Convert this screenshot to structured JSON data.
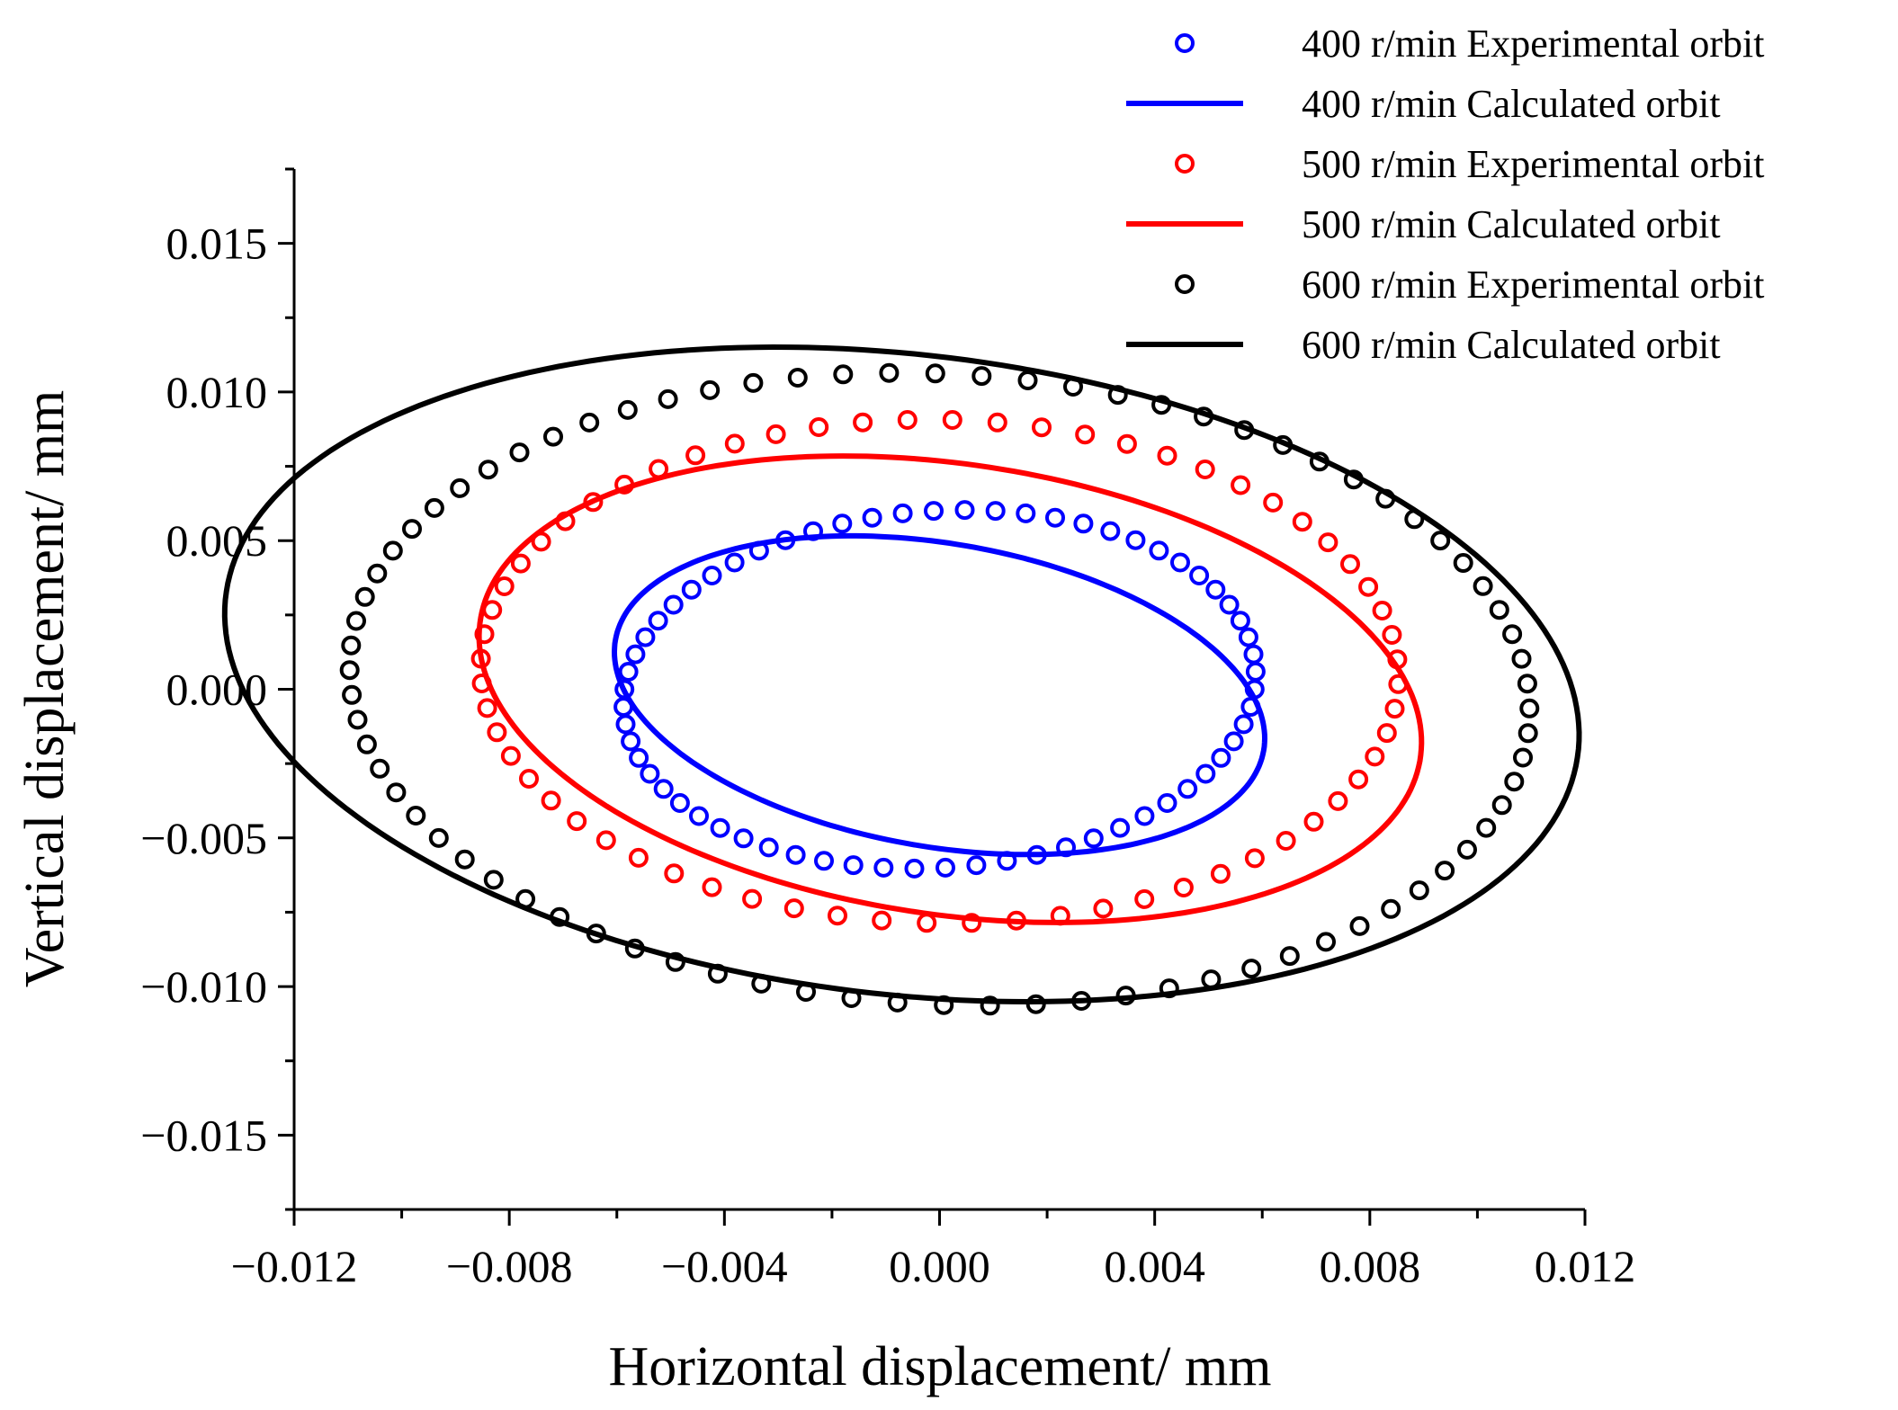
{
  "chart_data": {
    "type": "scatter",
    "title": "",
    "xlabel": "Horizontal displacement/ mm",
    "ylabel": "Vertical displacement/ mm",
    "xlim": [
      -0.012,
      0.012
    ],
    "ylim": [
      -0.0175,
      0.0175
    ],
    "x_ticks": [
      -0.012,
      -0.008,
      -0.004,
      0.0,
      0.004,
      0.008,
      0.012
    ],
    "x_tick_labels": [
      "−0.012",
      "−0.008",
      "−0.004",
      "0.000",
      "0.004",
      "0.008",
      "0.012"
    ],
    "y_ticks": [
      -0.015,
      -0.01,
      -0.005,
      0.0,
      0.005,
      0.01,
      0.015
    ],
    "y_tick_labels": [
      "−0.015",
      "−0.010",
      "−0.005",
      "0.000",
      "0.005",
      "0.010",
      "0.015"
    ],
    "grid": false,
    "legend_position": "top-right",
    "series": [
      {
        "name": "400 r/min Experimental orbit",
        "style": "marker",
        "color": "#0000ff",
        "ellipse": {
          "cx": 0.0,
          "cy": 0.0,
          "a": 0.0057,
          "b": 0.0062,
          "tilt_deg": -36
        },
        "n_points": 64
      },
      {
        "name": "400 r/min Calculated orbit",
        "style": "line",
        "color": "#0000ff",
        "ellipse": {
          "cx": 0.0,
          "cy": -0.0002,
          "a": 0.0065,
          "b": 0.0048,
          "tilt_deg": -33
        }
      },
      {
        "name": "500 r/min Experimental orbit",
        "style": "marker",
        "color": "#ff0000",
        "ellipse": {
          "cx": 0.0,
          "cy": 0.0006,
          "a": 0.0086,
          "b": 0.0084,
          "tilt_deg": -36
        },
        "n_points": 64
      },
      {
        "name": "500 r/min Calculated orbit",
        "style": "line",
        "color": "#ff0000",
        "ellipse": {
          "cx": 0.0002,
          "cy": 0.0,
          "a": 0.0093,
          "b": 0.0072,
          "tilt_deg": -32
        }
      },
      {
        "name": "600 r/min Experimental orbit",
        "style": "marker",
        "color": "#000000",
        "ellipse": {
          "cx": 0.0,
          "cy": 0.0,
          "a": 0.0112,
          "b": 0.0104,
          "tilt_deg": -33
        },
        "n_points": 80
      },
      {
        "name": "600 r/min Calculated orbit",
        "style": "line",
        "color": "#000000",
        "ellipse": {
          "cx": -0.0007,
          "cy": 0.0005,
          "a": 0.0131,
          "b": 0.0104,
          "tilt_deg": -27
        }
      }
    ]
  }
}
